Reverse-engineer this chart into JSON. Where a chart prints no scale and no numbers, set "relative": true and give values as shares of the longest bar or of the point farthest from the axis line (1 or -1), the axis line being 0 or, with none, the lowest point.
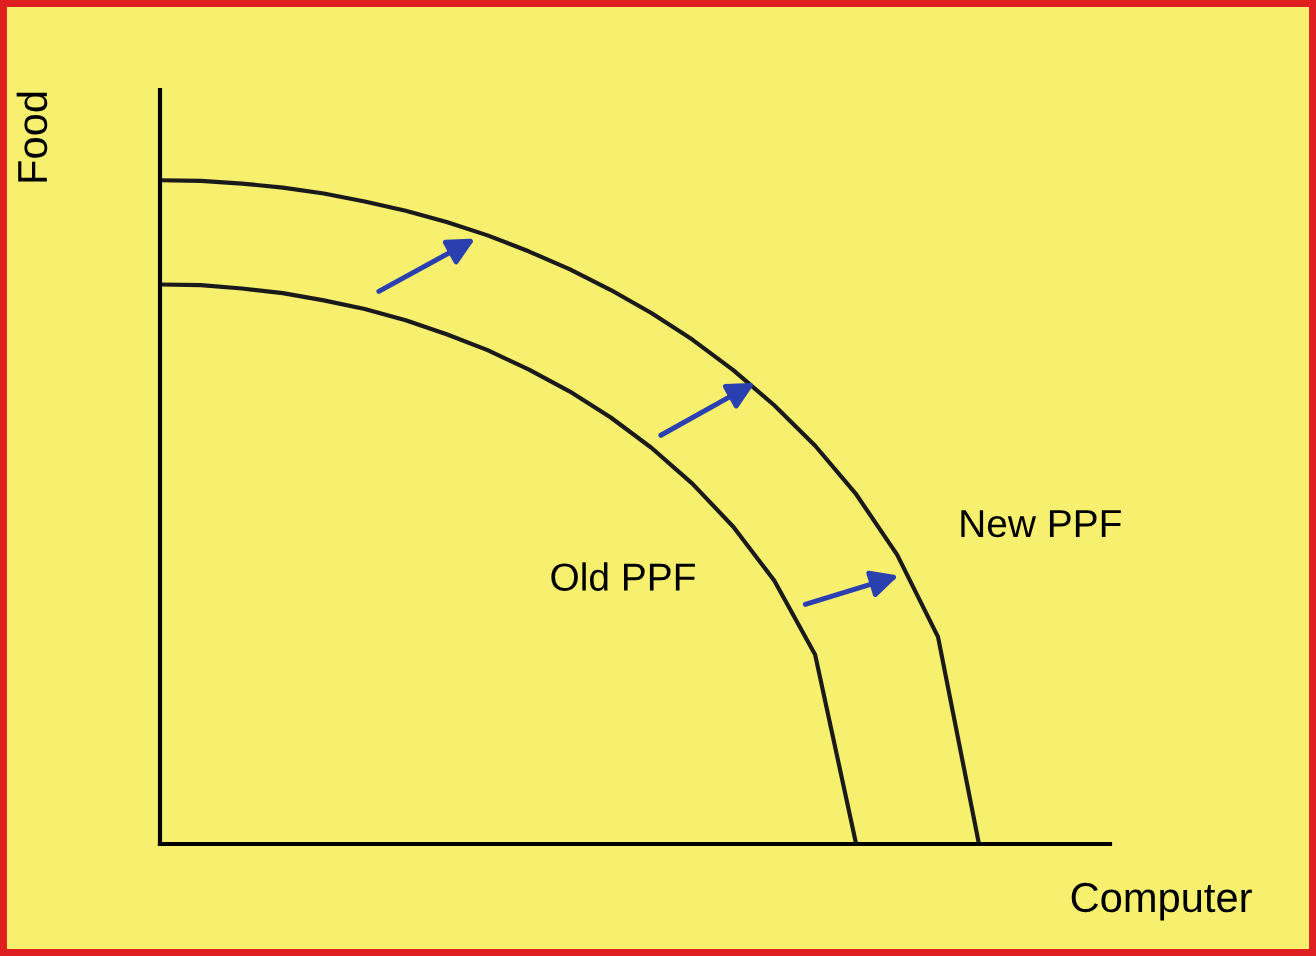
{
  "chart_data": {
    "type": "line",
    "relative": true,
    "xlabel": "Computer",
    "ylabel": "Food",
    "categories": [
      null,
      null,
      null,
      null,
      null,
      null,
      null,
      null,
      null,
      null,
      null,
      null,
      null,
      null,
      null,
      null,
      null,
      null,
      null,
      null,
      null
    ],
    "series": [
      {
        "name": "Old PPF",
        "color": "#1a1a1a",
        "values": [
          0.843,
          0.842,
          0.837,
          0.83,
          0.819,
          0.806,
          0.789,
          0.768,
          0.744,
          0.715,
          0.682,
          0.643,
          0.597,
          0.543,
          0.478,
          0.397,
          0.285,
          0,
          null,
          null,
          null
        ]
      },
      {
        "name": "New PPF",
        "color": "#1a1a1a",
        "values": [
          1,
          0.999,
          0.995,
          0.989,
          0.98,
          0.968,
          0.954,
          0.937,
          0.917,
          0.893,
          0.866,
          0.835,
          0.8,
          0.76,
          0.714,
          0.661,
          0.6,
          0.527,
          0.436,
          0.312,
          0
        ]
      }
    ],
    "marker": "none",
    "line_style": "solid",
    "grid": false,
    "legend": false
  }
}
